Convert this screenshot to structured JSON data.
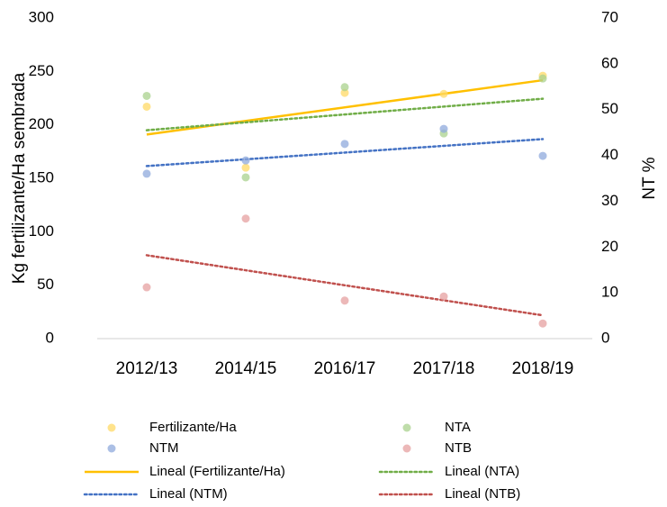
{
  "chart_data": {
    "type": "scatter",
    "categories": [
      "2012/13",
      "2014/15",
      "2016/17",
      "2017/18",
      "2018/19"
    ],
    "ylabel": "Kg fertilizante/Ha sembrada",
    "y2label": "NT %",
    "ylim": [
      0,
      300
    ],
    "yticks": [
      0,
      50,
      100,
      150,
      200,
      250,
      300
    ],
    "y2lim": [
      0,
      70
    ],
    "y2ticks": [
      0,
      10,
      20,
      30,
      40,
      50,
      60,
      70
    ],
    "legend": "bottom",
    "series": [
      {
        "name": "Fertilizante/Ha",
        "color": "#FFD966",
        "values": [
          217,
          160,
          230,
          229,
          246
        ],
        "axis": "y",
        "trendline": {
          "name": "Lineal (Fertilizante/Ha)",
          "color": "#FFC000",
          "dash": "solid"
        }
      },
      {
        "name": "NTA",
        "color": "#A9D18E",
        "values": [
          53,
          35.2,
          54.9,
          44.8,
          56.8
        ],
        "axis": "y2",
        "trendline": {
          "name": "Lineal (NTA)",
          "color": "#70AD47",
          "dash": "dotted"
        }
      },
      {
        "name": "NTM",
        "color": "#8FAADC",
        "values": [
          36,
          38.9,
          42.5,
          45.8,
          39.9
        ],
        "axis": "y2",
        "trendline": {
          "name": "Lineal (NTM)",
          "color": "#4472C4",
          "dash": "dotted"
        }
      },
      {
        "name": "NTB",
        "color": "#E6A0A0",
        "values": [
          11.2,
          26.2,
          8.3,
          9.2,
          3.3
        ],
        "axis": "y2",
        "trendline": {
          "name": "Lineal (NTB)",
          "color": "#C0504D",
          "dash": "dotted"
        }
      }
    ]
  }
}
